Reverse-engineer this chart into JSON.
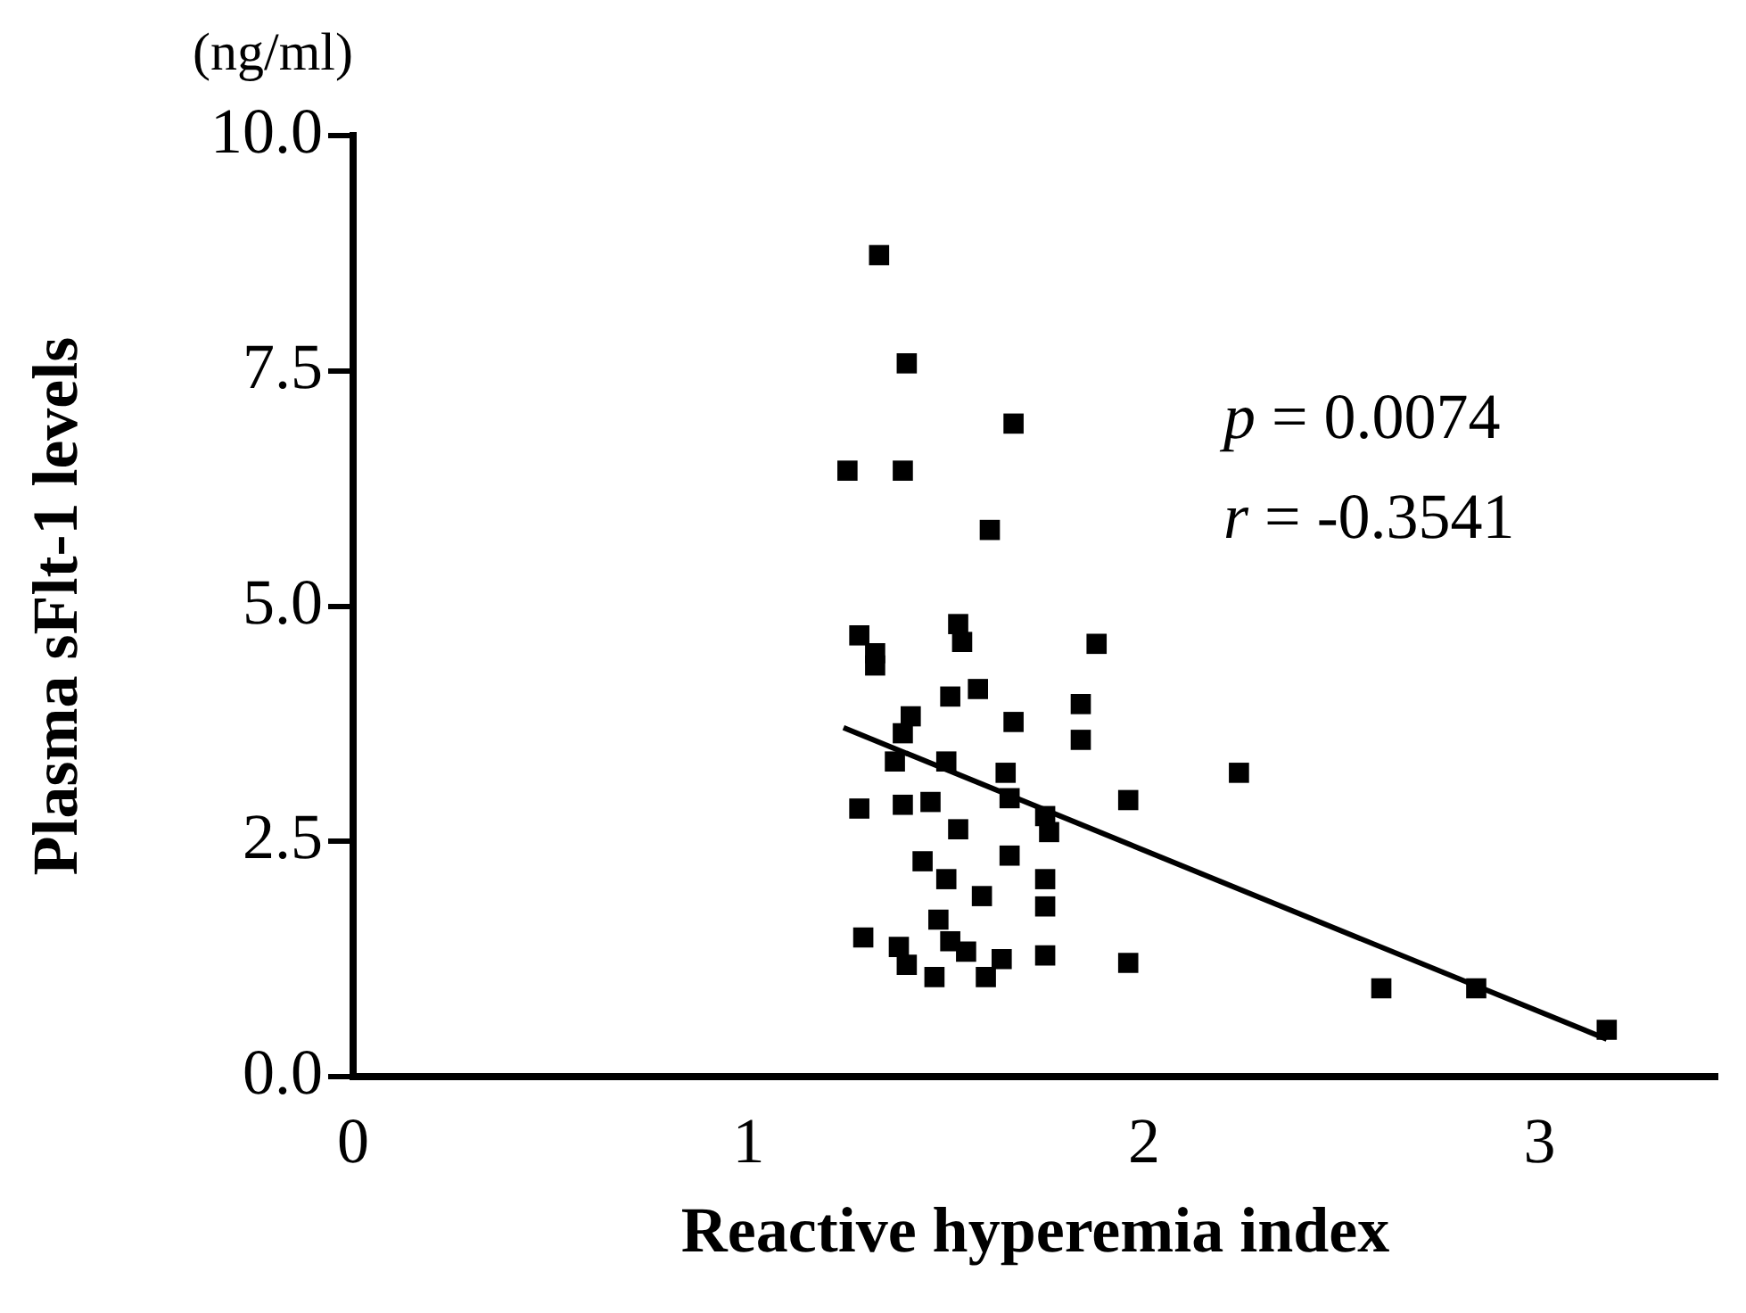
{
  "chart_data": {
    "type": "scatter",
    "xlabel": "Reactive hyperemia index",
    "ylabel": "Plasma sFlt-1 levels",
    "annotations": [
      "(ng/ml)",
      "p = 0.0074",
      "r = -0.3541"
    ],
    "xlim": [
      0,
      3.45
    ],
    "xticks": [
      0,
      1,
      2,
      3
    ],
    "ylim": [
      0,
      10
    ],
    "yticks": [
      {
        "value": 0,
        "label": "0.0"
      },
      {
        "value": 2.5,
        "label": "2.5"
      },
      {
        "value": 5,
        "label": "5.0"
      },
      {
        "value": 7.5,
        "label": "7.5"
      },
      {
        "value": 10,
        "label": "10.0"
      }
    ],
    "grid": false,
    "legend": false,
    "marker": "square",
    "series": [
      {
        "color": "#000000",
        "x": [
          1.33,
          1.4,
          1.67,
          1.25,
          1.39,
          1.61,
          1.28,
          1.32,
          1.53,
          1.54,
          1.88,
          1.32,
          1.51,
          1.58,
          1.41,
          1.39,
          1.67,
          1.84,
          1.84,
          2.24,
          1.37,
          1.5,
          1.65,
          1.66,
          1.75,
          1.76,
          1.28,
          1.39,
          1.46,
          1.96,
          1.53,
          1.44,
          1.66,
          1.5,
          1.59,
          1.75,
          1.75,
          1.48,
          1.29,
          1.38,
          1.51,
          1.4,
          1.47,
          1.55,
          1.64,
          1.6,
          1.75,
          1.96,
          2.6,
          2.84,
          3.17
        ],
        "values": [
          8.73,
          7.58,
          6.94,
          6.44,
          6.44,
          5.81,
          4.69,
          4.5,
          4.81,
          4.62,
          4.6,
          4.37,
          4.04,
          4.12,
          3.83,
          3.65,
          3.77,
          3.96,
          3.58,
          3.23,
          3.35,
          3.35,
          3.23,
          2.96,
          2.77,
          2.6,
          2.85,
          2.89,
          2.92,
          2.94,
          2.63,
          2.29,
          2.35,
          2.1,
          1.92,
          2.1,
          1.81,
          1.67,
          1.48,
          1.38,
          1.44,
          1.19,
          1.06,
          1.33,
          1.25,
          1.06,
          1.29,
          1.21,
          0.94,
          0.94,
          0.5
        ]
      },
      {
        "type": "line",
        "color": "#000000",
        "marker": "none",
        "line_style": "solid",
        "x": [
          1.24,
          3.17
        ],
        "values": [
          3.71,
          0.4
        ]
      }
    ]
  }
}
